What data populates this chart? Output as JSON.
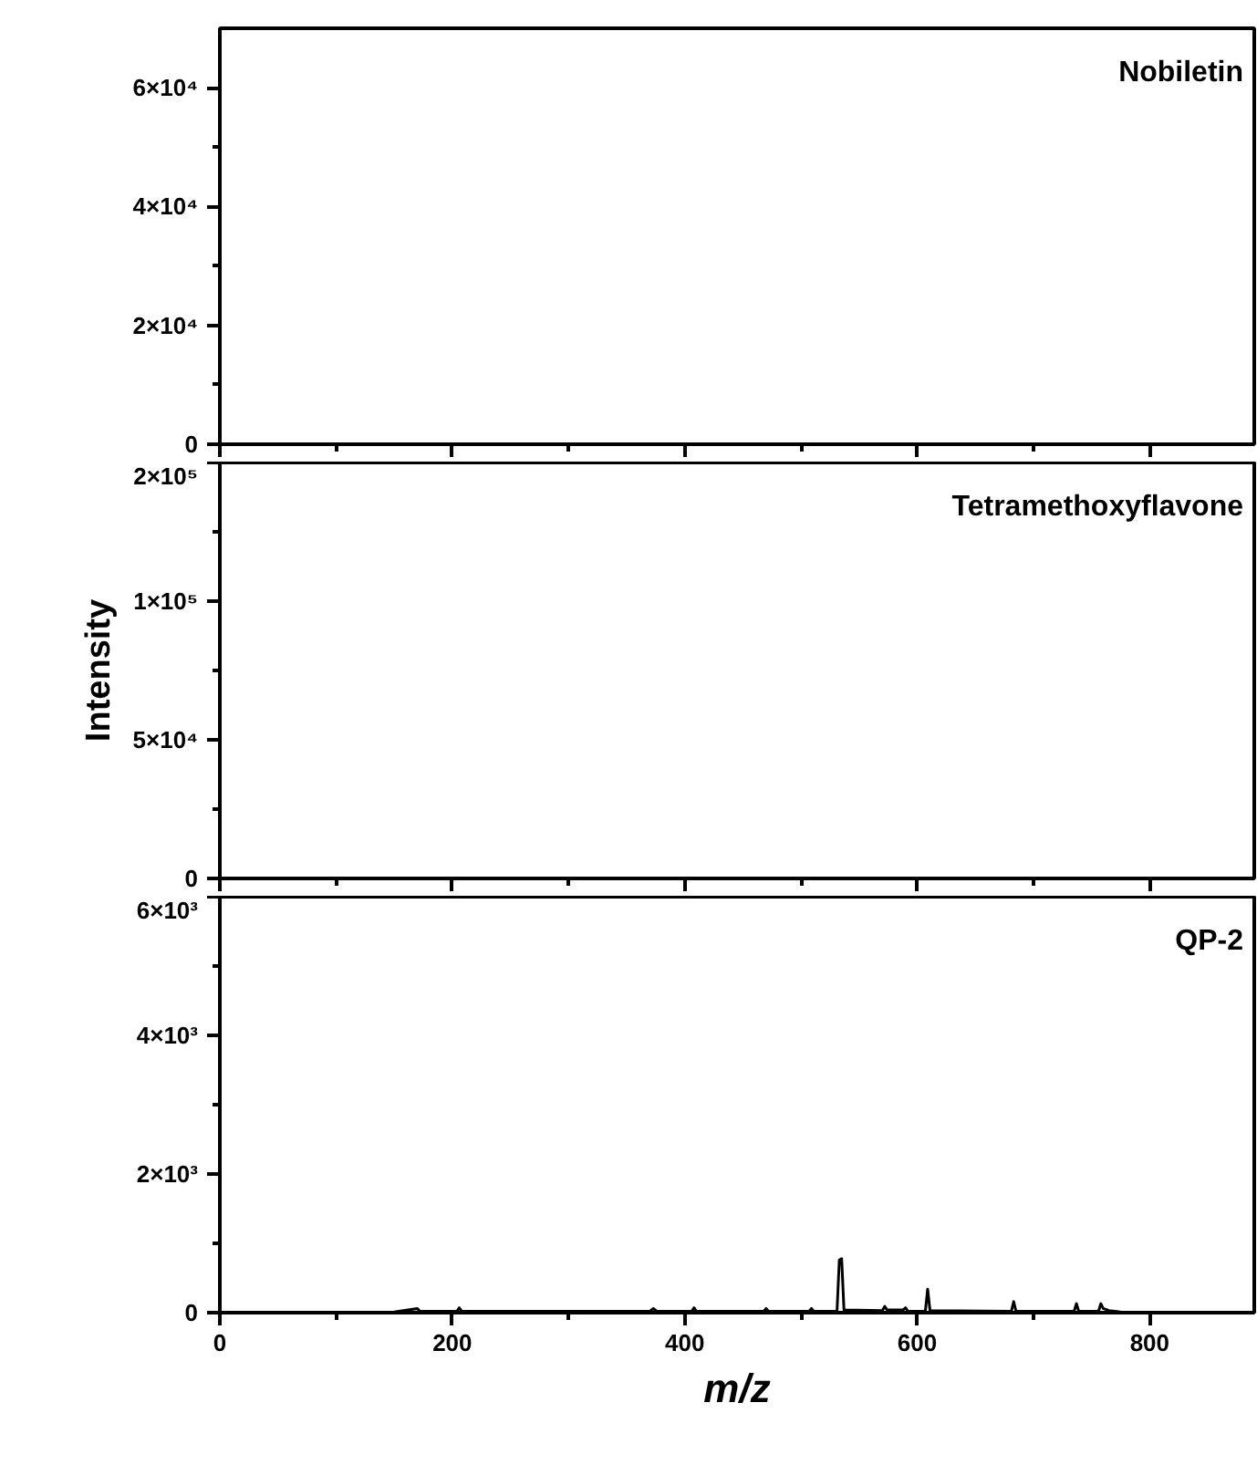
{
  "chart_data": [
    {
      "type": "line",
      "title": "Nobiletin",
      "xlim": [
        0,
        890
      ],
      "xticks": [
        0,
        200,
        400,
        600,
        800
      ],
      "ylim": [
        0,
        70000
      ],
      "yticks": [
        {
          "value": 0,
          "label": "0"
        },
        {
          "value": 20000,
          "label": "2×10⁴"
        },
        {
          "value": 40000,
          "label": "4×10⁴"
        },
        {
          "value": 60000,
          "label": "6×10⁴"
        }
      ],
      "tick_labels": "y",
      "grid": false
    },
    {
      "type": "line",
      "title": "Tetramethoxyflavone",
      "ylabel": "Intensity",
      "xlim": [
        0,
        890
      ],
      "xticks": [
        0,
        200,
        400,
        600,
        800
      ],
      "ylim": [
        0,
        150000
      ],
      "yticks": [
        {
          "value": 0,
          "label": "0"
        },
        {
          "value": 50000,
          "label": "5×10⁴"
        },
        {
          "value": 100000,
          "label": "1×10⁵"
        },
        {
          "value": 150000,
          "label": "2×10⁵"
        }
      ],
      "tick_labels": "y",
      "grid": false
    },
    {
      "type": "line",
      "title": "QP-2",
      "xlabel": "m/z",
      "xlim": [
        0,
        890
      ],
      "xticks": [
        0,
        200,
        400,
        600,
        800
      ],
      "ylim": [
        0,
        6000
      ],
      "yticks": [
        {
          "value": 0,
          "label": "0"
        },
        {
          "value": 2000,
          "label": "2×10³"
        },
        {
          "value": 4000,
          "label": "4×10³"
        },
        {
          "value": 6000,
          "label": "6×10³"
        }
      ],
      "grid": false,
      "series": [
        {
          "color": "#000000",
          "x": [
            150,
            170,
            172,
            174,
            204,
            206,
            208,
            370,
            373,
            376,
            406,
            408,
            410,
            468,
            470,
            472,
            507,
            509,
            511,
            531,
            533,
            535,
            537,
            570,
            572,
            574,
            588,
            590,
            592,
            607,
            609,
            611,
            681,
            683,
            685,
            735,
            737,
            739,
            756,
            758,
            760,
            765,
            775
          ],
          "values": [
            10,
            60,
            20,
            20,
            20,
            70,
            20,
            20,
            60,
            20,
            20,
            70,
            20,
            20,
            60,
            20,
            20,
            60,
            20,
            20,
            760,
            780,
            40,
            30,
            90,
            40,
            40,
            70,
            20,
            20,
            340,
            30,
            20,
            160,
            20,
            20,
            130,
            20,
            20,
            130,
            60,
            30,
            10
          ]
        }
      ]
    }
  ]
}
